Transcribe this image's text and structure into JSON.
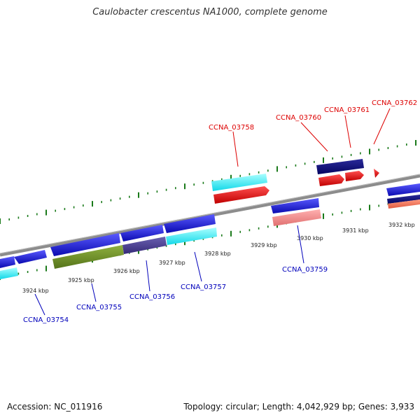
{
  "title": "Caulobacter crescentus NA1000, complete genome",
  "footer": {
    "accession": "Accession: NC_011916",
    "stats": "Topology: circular; Length: 4,042,929 bp; Genes: 3,933"
  },
  "colors": {
    "backbone": "#8c8c8c",
    "tick": "#1a7a1a",
    "label_forward": "#dd0000",
    "label_reverse": "#0000bb",
    "cds_blue": "#1515e0",
    "cds_cyan": "#13f0f0",
    "cds_red": "#ee0000",
    "cds_navy": "#08087a",
    "cds_olive": "#6b8e23",
    "cds_slate": "#4a3f8f",
    "cds_pink": "#ee8a8a",
    "cds_salmon": "#f07060"
  },
  "scale_labels": [
    {
      "kbp": 3924,
      "text": "3924 kbp"
    },
    {
      "kbp": 3925,
      "text": "3925 kbp"
    },
    {
      "kbp": 3926,
      "text": "3926 kbp"
    },
    {
      "kbp": 3927,
      "text": "3927 kbp"
    },
    {
      "kbp": 3928,
      "text": "3928 kbp"
    },
    {
      "kbp": 3929,
      "text": "3929 kbp"
    },
    {
      "kbp": 3930,
      "text": "3930 kbp"
    },
    {
      "kbp": 3931,
      "text": "3931 kbp"
    },
    {
      "kbp": 3932,
      "text": "3932 kbp"
    }
  ],
  "gene_labels": [
    {
      "text": "CCNA_03754",
      "strand": "reverse"
    },
    {
      "text": "CCNA_03755",
      "strand": "reverse"
    },
    {
      "text": "CCNA_03756",
      "strand": "reverse"
    },
    {
      "text": "CCNA_03757",
      "strand": "reverse"
    },
    {
      "text": "CCNA_03758",
      "strand": "forward"
    },
    {
      "text": "CCNA_03759",
      "strand": "reverse"
    },
    {
      "text": "CCNA_03760",
      "strand": "forward"
    },
    {
      "text": "CCNA_03761",
      "strand": "forward"
    },
    {
      "text": "CCNA_03762",
      "strand": "forward"
    }
  ]
}
